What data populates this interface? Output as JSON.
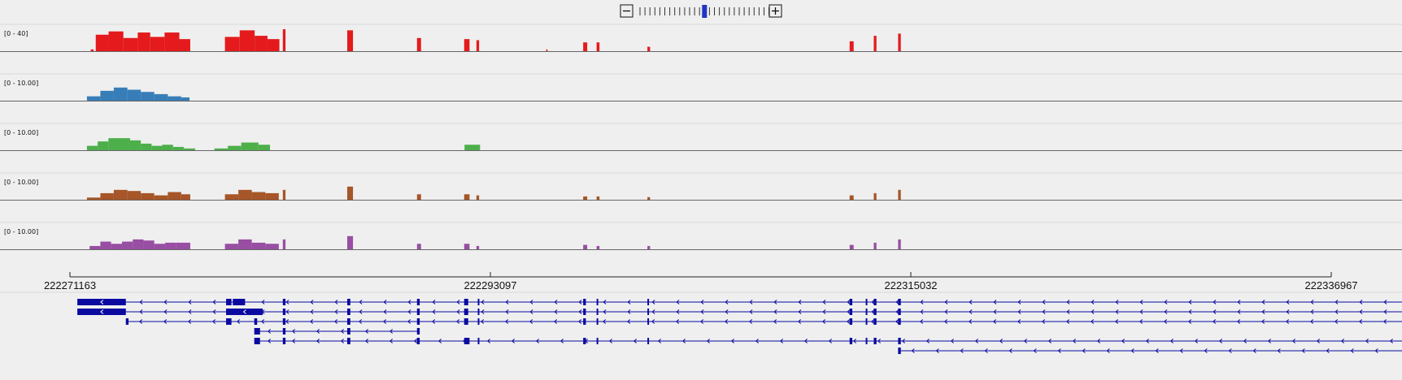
{
  "zoom": {
    "minus_label": "−",
    "plus_label": "+",
    "tick_count": 27,
    "active_index": 13,
    "active_color": "#2035c8"
  },
  "tracks": [
    {
      "id": "track-1",
      "range": "[0 - 40]",
      "color": "#e41a1c",
      "peaks": [
        {
          "s": 222272250,
          "e": 222272400,
          "h": 0.08
        },
        {
          "s": 222272510,
          "e": 222273180,
          "h": 0.75
        },
        {
          "s": 222273180,
          "e": 222273950,
          "h": 0.9
        },
        {
          "s": 222273950,
          "e": 222274700,
          "h": 0.6
        },
        {
          "s": 222274700,
          "e": 222275350,
          "h": 0.85
        },
        {
          "s": 222275350,
          "e": 222276100,
          "h": 0.65
        },
        {
          "s": 222276100,
          "e": 222276870,
          "h": 0.85
        },
        {
          "s": 222276870,
          "e": 222277440,
          "h": 0.55
        },
        {
          "s": 222279250,
          "e": 222280020,
          "h": 0.65
        },
        {
          "s": 222280020,
          "e": 222280800,
          "h": 0.95
        },
        {
          "s": 222280800,
          "e": 222281470,
          "h": 0.7
        },
        {
          "s": 222281470,
          "e": 222282090,
          "h": 0.55
        },
        {
          "s": 222282270,
          "e": 222282410,
          "h": 1.0
        },
        {
          "s": 222285630,
          "e": 222285930,
          "h": 0.95
        },
        {
          "s": 222289270,
          "e": 222289480,
          "h": 0.6
        },
        {
          "s": 222291730,
          "e": 222292010,
          "h": 0.55
        },
        {
          "s": 222292370,
          "e": 222292510,
          "h": 0.5
        },
        {
          "s": 222296010,
          "e": 222296080,
          "h": 0.08
        },
        {
          "s": 222297940,
          "e": 222298150,
          "h": 0.4
        },
        {
          "s": 222298640,
          "e": 222298790,
          "h": 0.4
        },
        {
          "s": 222301290,
          "e": 222301430,
          "h": 0.2
        },
        {
          "s": 222311840,
          "e": 222312050,
          "h": 0.45
        },
        {
          "s": 222313100,
          "e": 222313240,
          "h": 0.7
        },
        {
          "s": 222314370,
          "e": 222314510,
          "h": 0.8
        }
      ]
    },
    {
      "id": "track-2",
      "range": "[0 - 10.00]",
      "color": "#377eb8",
      "peaks": [
        {
          "s": 222272050,
          "e": 222272750,
          "h": 0.2
        },
        {
          "s": 222272750,
          "e": 222273450,
          "h": 0.45
        },
        {
          "s": 222273450,
          "e": 222274160,
          "h": 0.6
        },
        {
          "s": 222274160,
          "e": 222274860,
          "h": 0.5
        },
        {
          "s": 222274860,
          "e": 222275560,
          "h": 0.4
        },
        {
          "s": 222275560,
          "e": 222276270,
          "h": 0.3
        },
        {
          "s": 222276270,
          "e": 222276970,
          "h": 0.2
        },
        {
          "s": 222276970,
          "e": 222277400,
          "h": 0.15
        }
      ]
    },
    {
      "id": "track-3",
      "range": "[0 - 10.00]",
      "color": "#4daf4a",
      "peaks": [
        {
          "s": 222272050,
          "e": 222272610,
          "h": 0.2
        },
        {
          "s": 222272610,
          "e": 222273170,
          "h": 0.4
        },
        {
          "s": 222273170,
          "e": 222273730,
          "h": 0.55
        },
        {
          "s": 222273730,
          "e": 222274300,
          "h": 0.55
        },
        {
          "s": 222274300,
          "e": 222274860,
          "h": 0.45
        },
        {
          "s": 222274860,
          "e": 222275420,
          "h": 0.3
        },
        {
          "s": 222275420,
          "e": 222275980,
          "h": 0.2
        },
        {
          "s": 222275980,
          "e": 222276540,
          "h": 0.25
        },
        {
          "s": 222276540,
          "e": 222277100,
          "h": 0.15
        },
        {
          "s": 222277100,
          "e": 222277700,
          "h": 0.08
        },
        {
          "s": 222278700,
          "e": 222279400,
          "h": 0.08
        },
        {
          "s": 222279400,
          "e": 222280100,
          "h": 0.2
        },
        {
          "s": 222280100,
          "e": 222281000,
          "h": 0.35
        },
        {
          "s": 222281000,
          "e": 222281600,
          "h": 0.25
        },
        {
          "s": 222291750,
          "e": 222292560,
          "h": 0.25
        }
      ]
    },
    {
      "id": "track-4",
      "range": "[0 - 10.00]",
      "color": "#a65628",
      "peaks": [
        {
          "s": 222272050,
          "e": 222272750,
          "h": 0.1
        },
        {
          "s": 222272750,
          "e": 222273450,
          "h": 0.3
        },
        {
          "s": 222273450,
          "e": 222274160,
          "h": 0.45
        },
        {
          "s": 222274160,
          "e": 222274860,
          "h": 0.4
        },
        {
          "s": 222274860,
          "e": 222275560,
          "h": 0.3
        },
        {
          "s": 222275560,
          "e": 222276270,
          "h": 0.2
        },
        {
          "s": 222276270,
          "e": 222276970,
          "h": 0.35
        },
        {
          "s": 222276970,
          "e": 222277440,
          "h": 0.25
        },
        {
          "s": 222279250,
          "e": 222279950,
          "h": 0.25
        },
        {
          "s": 222279950,
          "e": 222280650,
          "h": 0.45
        },
        {
          "s": 222280650,
          "e": 222281360,
          "h": 0.35
        },
        {
          "s": 222281360,
          "e": 222282060,
          "h": 0.3
        },
        {
          "s": 222282270,
          "e": 222282410,
          "h": 0.45
        },
        {
          "s": 222285630,
          "e": 222285930,
          "h": 0.6
        },
        {
          "s": 222289270,
          "e": 222289480,
          "h": 0.25
        },
        {
          "s": 222291730,
          "e": 222292010,
          "h": 0.25
        },
        {
          "s": 222292370,
          "e": 222292510,
          "h": 0.2
        },
        {
          "s": 222297940,
          "e": 222298150,
          "h": 0.15
        },
        {
          "s": 222298640,
          "e": 222298790,
          "h": 0.15
        },
        {
          "s": 222301290,
          "e": 222301430,
          "h": 0.12
        },
        {
          "s": 222311840,
          "e": 222312050,
          "h": 0.2
        },
        {
          "s": 222313100,
          "e": 222313240,
          "h": 0.3
        },
        {
          "s": 222314370,
          "e": 222314510,
          "h": 0.45
        }
      ]
    },
    {
      "id": "track-5",
      "range": "[0 - 10.00]",
      "color": "#984ea3",
      "peaks": [
        {
          "s": 222272190,
          "e": 222272750,
          "h": 0.15
        },
        {
          "s": 222272750,
          "e": 222273310,
          "h": 0.35
        },
        {
          "s": 222273310,
          "e": 222273880,
          "h": 0.25
        },
        {
          "s": 222273880,
          "e": 222274440,
          "h": 0.35
        },
        {
          "s": 222274440,
          "e": 222275000,
          "h": 0.45
        },
        {
          "s": 222275000,
          "e": 222275560,
          "h": 0.4
        },
        {
          "s": 222275560,
          "e": 222276130,
          "h": 0.25
        },
        {
          "s": 222276130,
          "e": 222276690,
          "h": 0.3
        },
        {
          "s": 222276690,
          "e": 222277440,
          "h": 0.3
        },
        {
          "s": 222279250,
          "e": 222279950,
          "h": 0.25
        },
        {
          "s": 222279950,
          "e": 222280650,
          "h": 0.45
        },
        {
          "s": 222280650,
          "e": 222281360,
          "h": 0.3
        },
        {
          "s": 222281360,
          "e": 222282060,
          "h": 0.25
        },
        {
          "s": 222282270,
          "e": 222282410,
          "h": 0.45
        },
        {
          "s": 222285630,
          "e": 222285930,
          "h": 0.6
        },
        {
          "s": 222289270,
          "e": 222289480,
          "h": 0.25
        },
        {
          "s": 222291730,
          "e": 222292010,
          "h": 0.25
        },
        {
          "s": 222292370,
          "e": 222292510,
          "h": 0.15
        },
        {
          "s": 222297940,
          "e": 222298150,
          "h": 0.2
        },
        {
          "s": 222298640,
          "e": 222298790,
          "h": 0.15
        },
        {
          "s": 222301290,
          "e": 222301430,
          "h": 0.15
        },
        {
          "s": 222311840,
          "e": 222312050,
          "h": 0.2
        },
        {
          "s": 222313100,
          "e": 222313240,
          "h": 0.3
        },
        {
          "s": 222314370,
          "e": 222314510,
          "h": 0.45
        }
      ]
    }
  ],
  "ruler": {
    "start": 222271163,
    "end": 222336967,
    "tick_labels": [
      "222271163",
      "222293097",
      "222315032",
      "222336967"
    ],
    "tick_positions": [
      222271163,
      222293097,
      222315032,
      222336967
    ]
  },
  "genes": {
    "color": "#0a0aa0",
    "transcripts": [
      {
        "start": 222271550,
        "end": 222345000,
        "exons": [
          [
            222271550,
            222274080,
            "thick"
          ],
          [
            222279310,
            222279590,
            "thick"
          ],
          [
            222279660,
            222280300,
            "thick"
          ],
          [
            222282270,
            222282410,
            "thick"
          ],
          [
            222285630,
            222285790,
            "thick"
          ],
          [
            222289270,
            222289410,
            "thick"
          ],
          [
            222291730,
            222291940,
            "thick"
          ],
          [
            222292440,
            222292510,
            "thick"
          ],
          [
            222297940,
            222298080,
            "thick"
          ],
          [
            222298640,
            222298720,
            "thick"
          ],
          [
            222301290,
            222301360,
            "thick"
          ],
          [
            222311840,
            222311980,
            "thick"
          ],
          [
            222312680,
            222312750,
            "thick"
          ],
          [
            222313100,
            222313240,
            "thick"
          ],
          [
            222314370,
            222314510,
            "thick"
          ]
        ]
      },
      {
        "start": 222271550,
        "end": 222345000,
        "exons": [
          [
            222271550,
            222274080,
            "thick"
          ],
          [
            222279310,
            222281220,
            "thick"
          ],
          [
            222282270,
            222282410,
            "thick"
          ],
          [
            222285630,
            222285790,
            "thick"
          ],
          [
            222289270,
            222289410,
            "thick"
          ],
          [
            222291730,
            222291940,
            "thick"
          ],
          [
            222292440,
            222292510,
            "thick"
          ],
          [
            222297940,
            222298080,
            "thick"
          ],
          [
            222298640,
            222298720,
            "thick"
          ],
          [
            222301290,
            222301360,
            "thick"
          ],
          [
            222311840,
            222311980,
            "thick"
          ],
          [
            222312680,
            222312750,
            "thick"
          ],
          [
            222313100,
            222313240,
            "thick"
          ],
          [
            222314370,
            222314510,
            "thick"
          ]
        ]
      },
      {
        "start": 222274080,
        "end": 222345000,
        "exons": [
          [
            222274080,
            222274220,
            "thick"
          ],
          [
            222279310,
            222279590,
            "thick"
          ],
          [
            222280780,
            222280930,
            "thick"
          ],
          [
            222282270,
            222282410,
            "thick"
          ],
          [
            222285630,
            222285790,
            "thick"
          ],
          [
            222289270,
            222289410,
            "thick"
          ],
          [
            222291730,
            222291940,
            "thick"
          ],
          [
            222292440,
            222292510,
            "thick"
          ],
          [
            222297940,
            222298080,
            "thick"
          ],
          [
            222298640,
            222298720,
            "thick"
          ],
          [
            222301290,
            222301360,
            "thick"
          ],
          [
            222311840,
            222311980,
            "thick"
          ],
          [
            222312680,
            222312750,
            "thick"
          ],
          [
            222313100,
            222313240,
            "thick"
          ],
          [
            222314370,
            222314510,
            "thick"
          ]
        ]
      },
      {
        "start": 222280780,
        "end": 222289410,
        "exons": [
          [
            222280780,
            222281080,
            "thick"
          ],
          [
            222282270,
            222282410,
            "thick"
          ],
          [
            222285630,
            222285790,
            "thick"
          ],
          [
            222289270,
            222289410,
            "thick"
          ]
        ]
      },
      {
        "start": 222291730,
        "end": 222293460,
        "exons": [
          [
            222291730,
            222291940,
            "thick"
          ],
          [
            222292440,
            222293460,
            "thick"
          ]
        ]
      },
      {
        "start": 222314370,
        "end": 222345000,
        "exons": [
          [
            222314370,
            222314510,
            "thick"
          ]
        ]
      },
      {
        "start": 222280780,
        "end": 222345000,
        "exons": [
          [
            222280780,
            222281080,
            "thick"
          ],
          [
            222282270,
            222282410,
            "thick"
          ],
          [
            222285630,
            222285790,
            "thick"
          ],
          [
            222289270,
            222289410,
            "thick"
          ],
          [
            222291730,
            222292010,
            "thick"
          ],
          [
            222292440,
            222292510,
            "thick"
          ],
          [
            222297940,
            222298080,
            "thick"
          ],
          [
            222298640,
            222298720,
            "thick"
          ],
          [
            222301290,
            222301360,
            "thick"
          ],
          [
            222311840,
            222311980,
            "thick"
          ],
          [
            222312680,
            222312750,
            "thick"
          ],
          [
            222313100,
            222313240,
            "thick"
          ],
          [
            222314370,
            222314510,
            "thick"
          ]
        ]
      },
      {
        "start": 222314370,
        "end": 222345000,
        "exons": []
      }
    ]
  }
}
